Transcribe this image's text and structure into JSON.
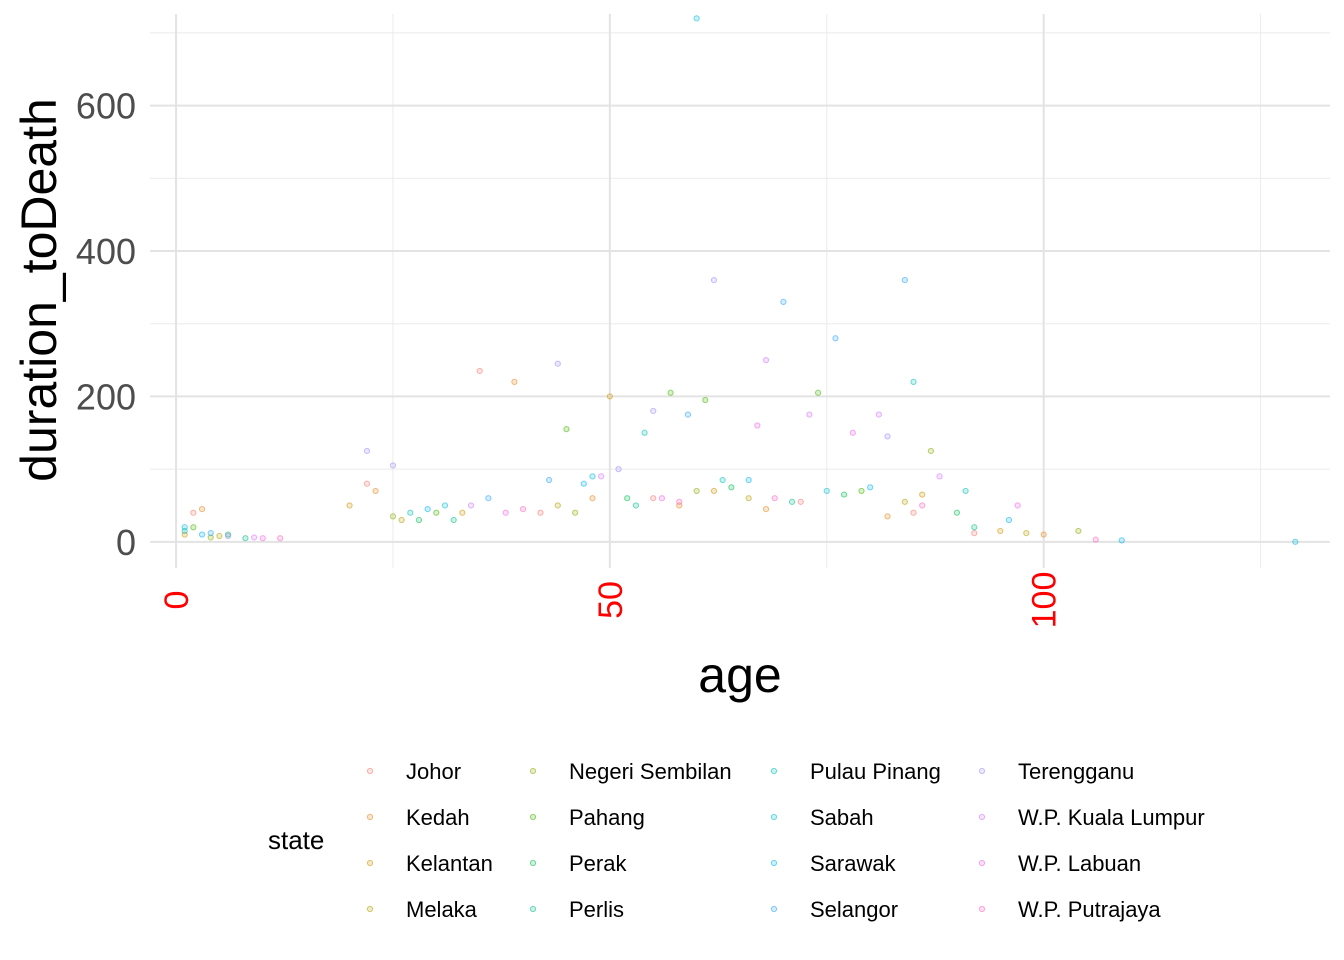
{
  "chart_data": {
    "type": "scatter",
    "xlabel": "age",
    "ylabel": "duration_toDeath",
    "xlim": [
      -3,
      133
    ],
    "ylim": [
      -36,
      726
    ],
    "x_ticks": [
      0,
      50,
      100
    ],
    "x_tick_labels": [
      "0",
      "50",
      "100"
    ],
    "x_tick_color": "#ff0000",
    "x_minor_ticks": [
      25,
      75,
      125
    ],
    "y_ticks": [
      0,
      200,
      400,
      600
    ],
    "y_tick_labels": [
      "0",
      "200",
      "400",
      "600"
    ],
    "y_minor_ticks": [
      100,
      300,
      500,
      700
    ],
    "grid": true,
    "legend": {
      "title": "state",
      "position": "bottom",
      "columns": 4
    },
    "series": [
      {
        "name": "Johor",
        "color": "#F8766D",
        "points": [
          [
            2,
            40
          ],
          [
            22,
            80
          ],
          [
            35,
            235
          ],
          [
            42,
            40
          ],
          [
            55,
            60
          ],
          [
            72,
            55
          ],
          [
            85,
            40
          ],
          [
            92,
            12
          ]
        ]
      },
      {
        "name": "Kedah",
        "color": "#E7851E",
        "points": [
          [
            3,
            45
          ],
          [
            23,
            70
          ],
          [
            39,
            220
          ],
          [
            48,
            60
          ],
          [
            58,
            50
          ],
          [
            68,
            45
          ],
          [
            82,
            35
          ],
          [
            100,
            10
          ]
        ]
      },
      {
        "name": "Kelantan",
        "color": "#D09400",
        "points": [
          [
            1,
            10
          ],
          [
            20,
            50
          ],
          [
            33,
            40
          ],
          [
            50,
            200
          ],
          [
            62,
            70
          ],
          [
            86,
            65
          ],
          [
            95,
            15
          ]
        ]
      },
      {
        "name": "Melaka",
        "color": "#B2A100",
        "points": [
          [
            5,
            8
          ],
          [
            26,
            30
          ],
          [
            44,
            50
          ],
          [
            66,
            60
          ],
          [
            84,
            55
          ],
          [
            98,
            12
          ]
        ]
      },
      {
        "name": "Negeri Sembilan",
        "color": "#89AC00",
        "points": [
          [
            4,
            6
          ],
          [
            25,
            35
          ],
          [
            46,
            40
          ],
          [
            60,
            70
          ],
          [
            87,
            125
          ],
          [
            104,
            15
          ]
        ]
      },
      {
        "name": "Pahang",
        "color": "#45B500",
        "points": [
          [
            2,
            20
          ],
          [
            30,
            40
          ],
          [
            45,
            155
          ],
          [
            57,
            205
          ],
          [
            61,
            195
          ],
          [
            74,
            205
          ],
          [
            79,
            70
          ]
        ]
      },
      {
        "name": "Perak",
        "color": "#00BC51",
        "points": [
          [
            6,
            10
          ],
          [
            28,
            30
          ],
          [
            52,
            60
          ],
          [
            64,
            75
          ],
          [
            77,
            65
          ],
          [
            90,
            40
          ]
        ]
      },
      {
        "name": "Perlis",
        "color": "#00C087",
        "points": [
          [
            8,
            5
          ],
          [
            32,
            30
          ],
          [
            53,
            50
          ],
          [
            71,
            55
          ],
          [
            92,
            20
          ]
        ]
      },
      {
        "name": "Pulau Pinang",
        "color": "#00C0B2",
        "points": [
          [
            1,
            15
          ],
          [
            27,
            40
          ],
          [
            54,
            150
          ],
          [
            63,
            85
          ],
          [
            85,
            220
          ],
          [
            91,
            70
          ]
        ]
      },
      {
        "name": "Sabah",
        "color": "#00BCD6",
        "points": [
          [
            1,
            20
          ],
          [
            31,
            50
          ],
          [
            48,
            90
          ],
          [
            60,
            720
          ],
          [
            75,
            70
          ],
          [
            129,
            0
          ]
        ]
      },
      {
        "name": "Sarawak",
        "color": "#00B3F2",
        "points": [
          [
            3,
            10
          ],
          [
            29,
            45
          ],
          [
            47,
            80
          ],
          [
            66,
            85
          ],
          [
            80,
            75
          ],
          [
            96,
            30
          ],
          [
            109,
            2
          ]
        ]
      },
      {
        "name": "Selangor",
        "color": "#29A3FF",
        "points": [
          [
            4,
            12
          ],
          [
            36,
            60
          ],
          [
            43,
            85
          ],
          [
            59,
            175
          ],
          [
            70,
            330
          ],
          [
            76,
            280
          ],
          [
            84,
            360
          ]
        ]
      },
      {
        "name": "Terengganu",
        "color": "#9C8DFF",
        "points": [
          [
            6,
            8
          ],
          [
            22,
            125
          ],
          [
            25,
            105
          ],
          [
            44,
            245
          ],
          [
            51,
            100
          ],
          [
            55,
            180
          ],
          [
            62,
            360
          ],
          [
            82,
            145
          ]
        ]
      },
      {
        "name": "W.P. Kuala Lumpur",
        "color": "#D277FF",
        "points": [
          [
            9,
            6
          ],
          [
            34,
            50
          ],
          [
            49,
            90
          ],
          [
            68,
            250
          ],
          [
            73,
            175
          ],
          [
            81,
            175
          ],
          [
            88,
            90
          ]
        ]
      },
      {
        "name": "W.P. Labuan",
        "color": "#F166E8",
        "points": [
          [
            10,
            5
          ],
          [
            38,
            40
          ],
          [
            56,
            60
          ],
          [
            67,
            160
          ],
          [
            78,
            150
          ],
          [
            97,
            50
          ]
        ]
      },
      {
        "name": "W.P. Putrajaya",
        "color": "#FF65BC",
        "points": [
          [
            12,
            5
          ],
          [
            40,
            45
          ],
          [
            58,
            55
          ],
          [
            69,
            60
          ],
          [
            86,
            50
          ],
          [
            106,
            3
          ]
        ]
      }
    ]
  }
}
